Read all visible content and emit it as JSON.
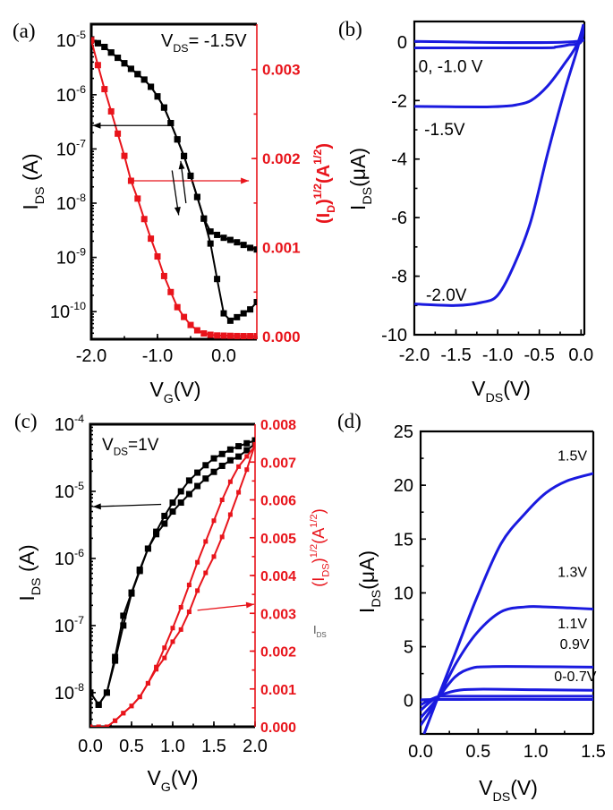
{
  "chart_data": [
    {
      "panel": "(a)",
      "type": "scatter",
      "annotation": "V_{DS}= -1.5V",
      "xlabel": "V_{G}(V)",
      "ylabel": "I_{DS} (A)",
      "ylabel_right": "(I_{D})^{1/2}(A^{1/2})",
      "xlim": [
        -2.0,
        0.5
      ],
      "ylim": [
        3.1e-11,
        2e-05
      ],
      "yscale": "log",
      "ylim_right": [
        -3e-05,
        0.00351
      ],
      "xticks": [
        -2.0,
        -1.0,
        0.0
      ],
      "xtick_labels": [
        "-2.0",
        "-1.0",
        "0.0"
      ],
      "xminor": 0.5,
      "yticks": [
        1e-10,
        1e-09,
        1e-08,
        1e-07,
        1e-06,
        1e-05
      ],
      "ytick_labels": [
        "10^{-10}",
        "10^{-9}",
        "10^{-8}",
        "10^{-7}",
        "10^{-6}",
        "10^{-5}"
      ],
      "yticks_right": [
        0,
        0.001,
        0.002,
        0.003
      ],
      "ytick_labels_right": [
        "0.000",
        "0.001",
        "0.002",
        "0.003"
      ],
      "yminor_right": 0.0005,
      "colors": {
        "left": "#000000",
        "right": "#e8141b"
      },
      "x": [
        -2.0,
        -1.9,
        -1.8,
        -1.7,
        -1.6,
        -1.5,
        -1.4,
        -1.3,
        -1.2,
        -1.1,
        -1.0,
        -0.9,
        -0.8,
        -0.7,
        -0.6,
        -0.5,
        -0.4,
        -0.3,
        -0.2,
        -0.1,
        0.0,
        0.1,
        0.2,
        0.3,
        0.4,
        0.5
      ],
      "series": [
        {
          "axis": "left",
          "color": "#000000",
          "values": [
            1.05e-05,
            8.9e-06,
            7.6e-06,
            6e-06,
            4.8e-06,
            3.8e-06,
            3e-06,
            2.4e-06,
            1.9e-06,
            1.4e-06,
            9.3e-07,
            5.8e-07,
            3e-07,
            1.5e-07,
            7.4e-08,
            3.2e-08,
            1.3e-08,
            5.2e-09,
            3e-09,
            2.6e-09,
            2.3e-09,
            2.1e-09,
            1.9e-09,
            1.7e-09,
            1.5e-09,
            1.4e-09
          ]
        },
        {
          "axis": "left",
          "color": "#000000",
          "values": [
            1.05e-05,
            8.9e-06,
            7.6e-06,
            6e-06,
            4.8e-06,
            3.8e-06,
            3e-06,
            2.4e-06,
            1.9e-06,
            1.4e-06,
            9.3e-07,
            5.8e-07,
            3e-07,
            1.5e-07,
            7.4e-08,
            3.2e-08,
            1.3e-08,
            5.2e-09,
            1.8e-09,
            4e-10,
            9.3e-11,
            6.8e-11,
            7.9e-11,
            9.3e-11,
            1.1e-10,
            1.5e-10
          ]
        },
        {
          "axis": "right",
          "color": "#e8141b",
          "values": [
            0.00333,
            0.00305,
            0.00278,
            0.00253,
            0.00228,
            0.00203,
            0.00175,
            0.00155,
            0.00132,
            0.0011,
            0.0009,
            0.00068,
            0.0005,
            0.00033,
            0.00022,
            0.00013,
            7e-05,
            3.5e-05,
            2e-05,
            1.2e-05,
            1e-05,
            8e-06,
            6e-06,
            5e-06,
            5e-06,
            5e-06
          ]
        }
      ],
      "arrows": [
        {
          "axis": "left",
          "color": "#000000",
          "from": [
            -0.8,
            2.7e-07
          ],
          "to": [
            -1.98,
            2.7e-07
          ]
        },
        {
          "axis": "right",
          "color": "#e8141b",
          "from": [
            -1.4,
            0.00175
          ],
          "to": [
            0.38,
            0.00175
          ]
        },
        {
          "axis": "left",
          "color": "#000000",
          "from": [
            -0.78,
            4e-08
          ],
          "to": [
            -0.68,
            6e-09
          ]
        },
        {
          "axis": "left",
          "color": "#000000",
          "from": [
            -0.57,
            1e-08
          ],
          "to": [
            -0.65,
            6e-08
          ]
        }
      ]
    },
    {
      "panel": "(b)",
      "type": "line",
      "xlabel": "V_{DS}(V)",
      "ylabel": "I_{DS}(μA)",
      "xlim": [
        -2.0,
        0.04
      ],
      "ylim": [
        -10,
        0.7
      ],
      "xticks": [
        -2.0,
        -1.5,
        -1.0,
        -0.5,
        0.0
      ],
      "xtick_labels": [
        "-2.0",
        "-1.5",
        "-1.0",
        "-0.5",
        "0.0"
      ],
      "xminor": 0.25,
      "yticks": [
        -10,
        -8,
        -6,
        -4,
        -2,
        0
      ],
      "ytick_labels": [
        "-10",
        "-8",
        "-6",
        "-4",
        "-2",
        "0"
      ],
      "yminor": 1,
      "color": "#1a1adf",
      "series": [
        {
          "name": "0, -1.0 V",
          "points": [
            [
              -2,
              0.02
            ],
            [
              -0.05,
              0.02
            ],
            [
              0.03,
              0.6
            ]
          ]
        },
        {
          "points": [
            [
              -2,
              -0.2
            ],
            [
              -0.5,
              -0.2
            ],
            [
              -0.3,
              -0.17
            ],
            [
              -0.15,
              -0.1
            ],
            [
              0,
              0
            ],
            [
              0.03,
              0.6
            ]
          ]
        },
        {
          "name": "-1.5V",
          "points": [
            [
              -2,
              -2.2
            ],
            [
              -1.2,
              -2.22
            ],
            [
              -0.9,
              -2.19
            ],
            [
              -0.78,
              -2.15
            ],
            [
              -0.6,
              -2.0
            ],
            [
              -0.4,
              -1.5
            ],
            [
              -0.2,
              -0.75
            ],
            [
              -0.05,
              -0.1
            ],
            [
              0.03,
              0.6
            ]
          ]
        },
        {
          "name": "-2.0V",
          "points": [
            [
              -2,
              -8.95
            ],
            [
              -1.5,
              -9.0
            ],
            [
              -1.2,
              -8.9
            ],
            [
              -1.0,
              -8.65
            ],
            [
              -0.8,
              -7.6
            ],
            [
              -0.6,
              -6.1
            ],
            [
              -0.4,
              -3.8
            ],
            [
              -0.2,
              -1.7
            ],
            [
              -0.05,
              -0.3
            ],
            [
              0.03,
              0.6
            ]
          ]
        }
      ],
      "labels": [
        {
          "text": "0, -1.0 V",
          "at": [
            -1.95,
            -0.85
          ]
        },
        {
          "text": "-1.5V",
          "at": [
            -1.88,
            -3.0
          ]
        },
        {
          "text": "-2.0V",
          "at": [
            -1.86,
            -8.65
          ]
        }
      ]
    },
    {
      "panel": "(c)",
      "type": "scatter",
      "annotation": "V_{DS}=1V",
      "xlabel": "V_{G}(V)",
      "ylabel": "I_{DS} (A)",
      "ylabel_right": "(I_{DS})^{1/2}(A^{1/2})",
      "extra_text": "I_{DS}",
      "xlim": [
        0,
        2.0
      ],
      "ylim": [
        3.1e-09,
        0.0001
      ],
      "yscale": "log",
      "ylim_right": [
        0,
        0.008
      ],
      "xticks": [
        0,
        0.5,
        1.0,
        1.5,
        2.0
      ],
      "xtick_labels": [
        "0.0",
        "0.5",
        "1.0",
        "1.5",
        "2.0"
      ],
      "xminor": 0.25,
      "yticks": [
        1e-08,
        1e-07,
        1e-06,
        1e-05,
        0.0001
      ],
      "ytick_labels": [
        "10^{-8}",
        "10^{-7}",
        "10^{-6}",
        "10^{-5}",
        "10^{-4}"
      ],
      "yticks_right": [
        0,
        0.001,
        0.002,
        0.003,
        0.004,
        0.005,
        0.006,
        0.007,
        0.008
      ],
      "ytick_labels_right": [
        "0.000",
        "0.001",
        "0.002",
        "0.003",
        "0.004",
        "0.005",
        "0.006",
        "0.007",
        "0.008"
      ],
      "yminor_right": 0.0005,
      "colors": {
        "left": "#000000",
        "right": "#e8141b"
      },
      "x": [
        0,
        0.1,
        0.2,
        0.3,
        0.4,
        0.5,
        0.6,
        0.7,
        0.8,
        0.9,
        1.0,
        1.1,
        1.2,
        1.3,
        1.4,
        1.5,
        1.6,
        1.7,
        1.8,
        1.9,
        2.0
      ],
      "series": [
        {
          "axis": "left",
          "color": "#000000",
          "values": [
            1e-08,
            6.6e-09,
            1e-08,
            3.4e-08,
            1.4e-07,
            3.1e-07,
            6.8e-07,
            1.4e-06,
            2.5e-06,
            4.3e-06,
            6.8e-06,
            1e-05,
            1.45e-05,
            1.9e-05,
            2.45e-05,
            3.1e-05,
            3.6e-05,
            4.2e-05,
            4.7e-05,
            5.2e-05,
            5.75e-05
          ]
        },
        {
          "axis": "left",
          "color": "#000000",
          "values": [
            1e-08,
            6.6e-09,
            1e-08,
            3e-08,
            1e-07,
            3e-07,
            6.5e-07,
            1.4e-06,
            2.3e-06,
            3.3e-06,
            5e-06,
            6.8e-06,
            9.1e-06,
            1.2e-05,
            1.55e-05,
            1.95e-05,
            2.4e-05,
            2.9e-05,
            3.3e-05,
            4.1e-05,
            5.1e-05
          ]
        },
        {
          "axis": "right",
          "color": "#e8141b",
          "values": [
            0,
            0,
            0,
            0.00016,
            0.00036,
            0.00055,
            0.00079,
            0.00115,
            0.00158,
            0.00209,
            0.00261,
            0.00316,
            0.00375,
            0.00435,
            0.0049,
            0.00545,
            0.006,
            0.00648,
            0.00688,
            0.00715,
            0.00743
          ]
        },
        {
          "axis": "right",
          "color": "#e8141b",
          "values": [
            0,
            0,
            0,
            0.00016,
            0.00036,
            0.00055,
            0.00079,
            0.00115,
            0.00152,
            0.00182,
            0.00225,
            0.00257,
            0.00304,
            0.0036,
            0.00407,
            0.0045,
            0.00502,
            0.00561,
            0.0062,
            0.0068,
            0.00747
          ]
        }
      ],
      "arrows": [
        {
          "axis": "left",
          "color": "#000000",
          "from": [
            0.86,
            6.4e-06
          ],
          "to": [
            0.03,
            5.9e-06
          ]
        },
        {
          "axis": "right",
          "color": "#e8141b",
          "from": [
            1.3,
            0.00308
          ],
          "to": [
            1.99,
            0.00324
          ]
        }
      ]
    },
    {
      "panel": "(d)",
      "type": "line",
      "xlabel": "V_{DS}(V)",
      "ylabel": "I_{DS}(μA)",
      "xlim": [
        0,
        1.5
      ],
      "ylim": [
        -3.1,
        25
      ],
      "xticks": [
        0,
        0.5,
        1.0,
        1.5
      ],
      "xtick_labels": [
        "0.0",
        "0.5",
        "1.0",
        "1.5"
      ],
      "xminor": 0.25,
      "yticks": [
        0,
        5,
        10,
        15,
        20,
        25
      ],
      "ytick_labels": [
        "0",
        "5",
        "10",
        "15",
        "20",
        "25"
      ],
      "yminor": 2.5,
      "color": "#1a1adf",
      "series": [
        {
          "name": "1.5V",
          "points": [
            [
              0.03,
              -3.1
            ],
            [
              0.14,
              0
            ],
            [
              0.31,
              4.65
            ],
            [
              0.49,
              9.6
            ],
            [
              0.7,
              14.6
            ],
            [
              0.91,
              17.4
            ],
            [
              1.09,
              19.3
            ],
            [
              1.27,
              20.4
            ],
            [
              1.5,
              21.1
            ]
          ]
        },
        {
          "name": "1.3V",
          "points": [
            [
              0,
              -2.3
            ],
            [
              0.14,
              0
            ],
            [
              0.31,
              3.5
            ],
            [
              0.49,
              6.3
            ],
            [
              0.7,
              8.25
            ],
            [
              0.91,
              8.7
            ],
            [
              1.09,
              8.7
            ],
            [
              1.3,
              8.6
            ],
            [
              1.5,
              8.5
            ]
          ]
        },
        {
          "name": "1.1V",
          "points": [
            [
              0,
              -1.6
            ],
            [
              0.14,
              0.1
            ],
            [
              0.3,
              2.2
            ],
            [
              0.44,
              3.0
            ],
            [
              0.6,
              3.15
            ],
            [
              1.0,
              3.15
            ],
            [
              1.5,
              3.1
            ]
          ]
        },
        {
          "name": "0.9V",
          "points": [
            [
              0,
              -0.9
            ],
            [
              0.14,
              0.3
            ],
            [
              0.3,
              0.9
            ],
            [
              0.5,
              1.05
            ],
            [
              1.0,
              1.0
            ],
            [
              1.5,
              0.95
            ]
          ]
        },
        {
          "name": "0-0.7V",
          "points": [
            [
              0,
              -0.4
            ],
            [
              0.15,
              0.35
            ],
            [
              0.3,
              0.4
            ],
            [
              1.5,
              0.4
            ]
          ]
        },
        {
          "points": [
            [
              0,
              0
            ],
            [
              0.15,
              0.1
            ],
            [
              1.5,
              0.1
            ]
          ]
        }
      ],
      "labels": [
        {
          "text": "1.5V",
          "at": [
            1.19,
            22.8
          ]
        },
        {
          "text": "1.3V",
          "at": [
            1.19,
            12.0
          ]
        },
        {
          "text": "1.1V",
          "at": [
            1.19,
            7.2
          ]
        },
        {
          "text": "0.9V",
          "at": [
            1.21,
            5.3
          ]
        },
        {
          "text": "0-0.7V",
          "at": [
            1.16,
            2.3
          ]
        }
      ]
    }
  ]
}
